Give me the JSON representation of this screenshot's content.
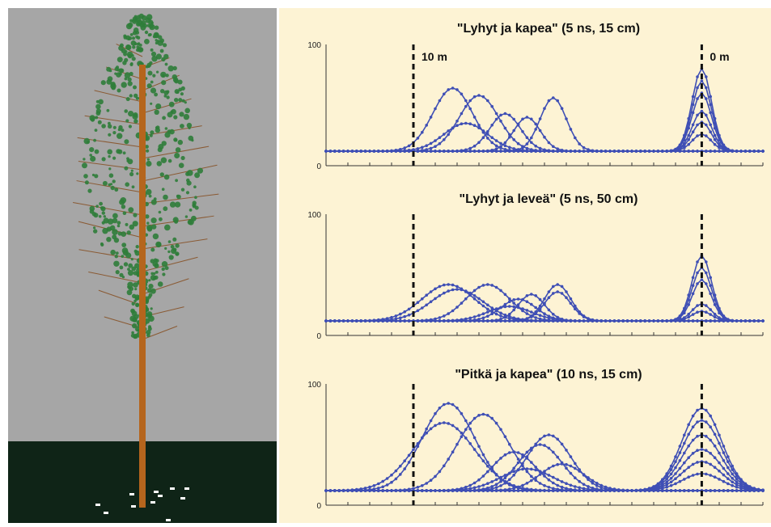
{
  "scene": {
    "sky_color": "#a6a6a6",
    "ground_color": "#0f2417",
    "trunk_color": "#b5651d",
    "foliage_color": "#2f7d3a",
    "chart_background": "#fdf3d4",
    "series_color": "#3f4fb5"
  },
  "chart_data": [
    {
      "type": "line",
      "title": "\"Lyhyt ja kapea\" (5 ns, 15 cm)",
      "xlim": [
        0,
        100
      ],
      "ylim": [
        0,
        100
      ],
      "yticks": [
        "0",
        "100"
      ],
      "markers": [
        {
          "x": 20,
          "label": "10 m"
        },
        {
          "x": 86,
          "label": "0 m"
        }
      ],
      "baseline": 12,
      "series": [
        {
          "peaks": [
            [
              29,
              64,
              4.5
            ]
          ]
        },
        {
          "peaks": [
            [
              35,
              58,
              4.5
            ]
          ]
        },
        {
          "peaks": [
            [
              41,
              43,
              3.5
            ]
          ]
        },
        {
          "peaks": [
            [
              46,
              40,
              3
            ]
          ]
        },
        {
          "peaks": [
            [
              52,
              56,
              3
            ]
          ]
        },
        {
          "peaks": [
            [
              32,
              35,
              5
            ]
          ]
        },
        {
          "peaks": [
            [
              86,
              80,
              2.2
            ]
          ]
        },
        {
          "peaks": [
            [
              86,
              70,
              2.2
            ]
          ]
        },
        {
          "peaks": [
            [
              86,
              60,
              2.2
            ]
          ]
        },
        {
          "peaks": [
            [
              86,
              45,
              2.2
            ]
          ]
        },
        {
          "peaks": [
            [
              86,
              36,
              2.2
            ]
          ]
        },
        {
          "peaks": [
            [
              86,
              26,
              2.2
            ]
          ]
        }
      ]
    },
    {
      "type": "line",
      "title": "\"Lyhyt ja leveä\" (5 ns, 50 cm)",
      "xlim": [
        0,
        100
      ],
      "ylim": [
        0,
        100
      ],
      "yticks": [
        "0",
        "100"
      ],
      "markers": [
        {
          "x": 20,
          "label": ""
        },
        {
          "x": 86,
          "label": ""
        }
      ],
      "baseline": 12,
      "series": [
        {
          "peaks": [
            [
              28,
              42,
              6
            ]
          ]
        },
        {
          "peaks": [
            [
              30,
              38,
              6
            ]
          ]
        },
        {
          "peaks": [
            [
              37,
              42,
              5
            ]
          ]
        },
        {
          "peaks": [
            [
              44,
              30,
              4
            ]
          ]
        },
        {
          "peaks": [
            [
              47,
              34,
              3
            ]
          ]
        },
        {
          "peaks": [
            [
              53,
              42,
              3
            ]
          ]
        },
        {
          "peaks": [
            [
              53,
              36,
              3
            ]
          ]
        },
        {
          "peaks": [
            [
              42,
              24,
              5
            ]
          ]
        },
        {
          "peaks": [
            [
              86,
              66,
              2.2
            ]
          ]
        },
        {
          "peaks": [
            [
              86,
              56,
              2.2
            ]
          ]
        },
        {
          "peaks": [
            [
              86,
              46,
              2.2
            ]
          ]
        },
        {
          "peaks": [
            [
              86,
              26,
              2.2
            ]
          ]
        },
        {
          "peaks": [
            [
              86,
              20,
              2.2
            ]
          ]
        }
      ]
    },
    {
      "type": "line",
      "title": "\"Pitkä ja kapea\" (10 ns, 15 cm)",
      "xlim": [
        0,
        100
      ],
      "ylim": [
        0,
        100
      ],
      "yticks": [
        "0",
        "100"
      ],
      "markers": [
        {
          "x": 20,
          "label": ""
        },
        {
          "x": 86,
          "label": ""
        }
      ],
      "baseline": 12,
      "series": [
        {
          "peaks": [
            [
              28,
              84,
              6
            ]
          ]
        },
        {
          "peaks": [
            [
              27,
              68,
              7
            ]
          ]
        },
        {
          "peaks": [
            [
              36,
              75,
              6
            ]
          ]
        },
        {
          "peaks": [
            [
              43,
              44,
              5
            ]
          ]
        },
        {
          "peaks": [
            [
              51,
              58,
              5
            ]
          ]
        },
        {
          "peaks": [
            [
              49,
              50,
              5
            ]
          ]
        },
        {
          "peaks": [
            [
              54,
              34,
              5
            ]
          ]
        },
        {
          "peaks": [
            [
              46,
              30,
              6
            ]
          ]
        },
        {
          "peaks": [
            [
              86,
              80,
              4.5
            ]
          ]
        },
        {
          "peaks": [
            [
              86,
              70,
              4.5
            ]
          ]
        },
        {
          "peaks": [
            [
              86,
              58,
              4.5
            ]
          ]
        },
        {
          "peaks": [
            [
              86,
              46,
              4.5
            ]
          ]
        },
        {
          "peaks": [
            [
              86,
              36,
              4.5
            ]
          ]
        },
        {
          "peaks": [
            [
              86,
              26,
              4.5
            ]
          ]
        }
      ]
    }
  ]
}
